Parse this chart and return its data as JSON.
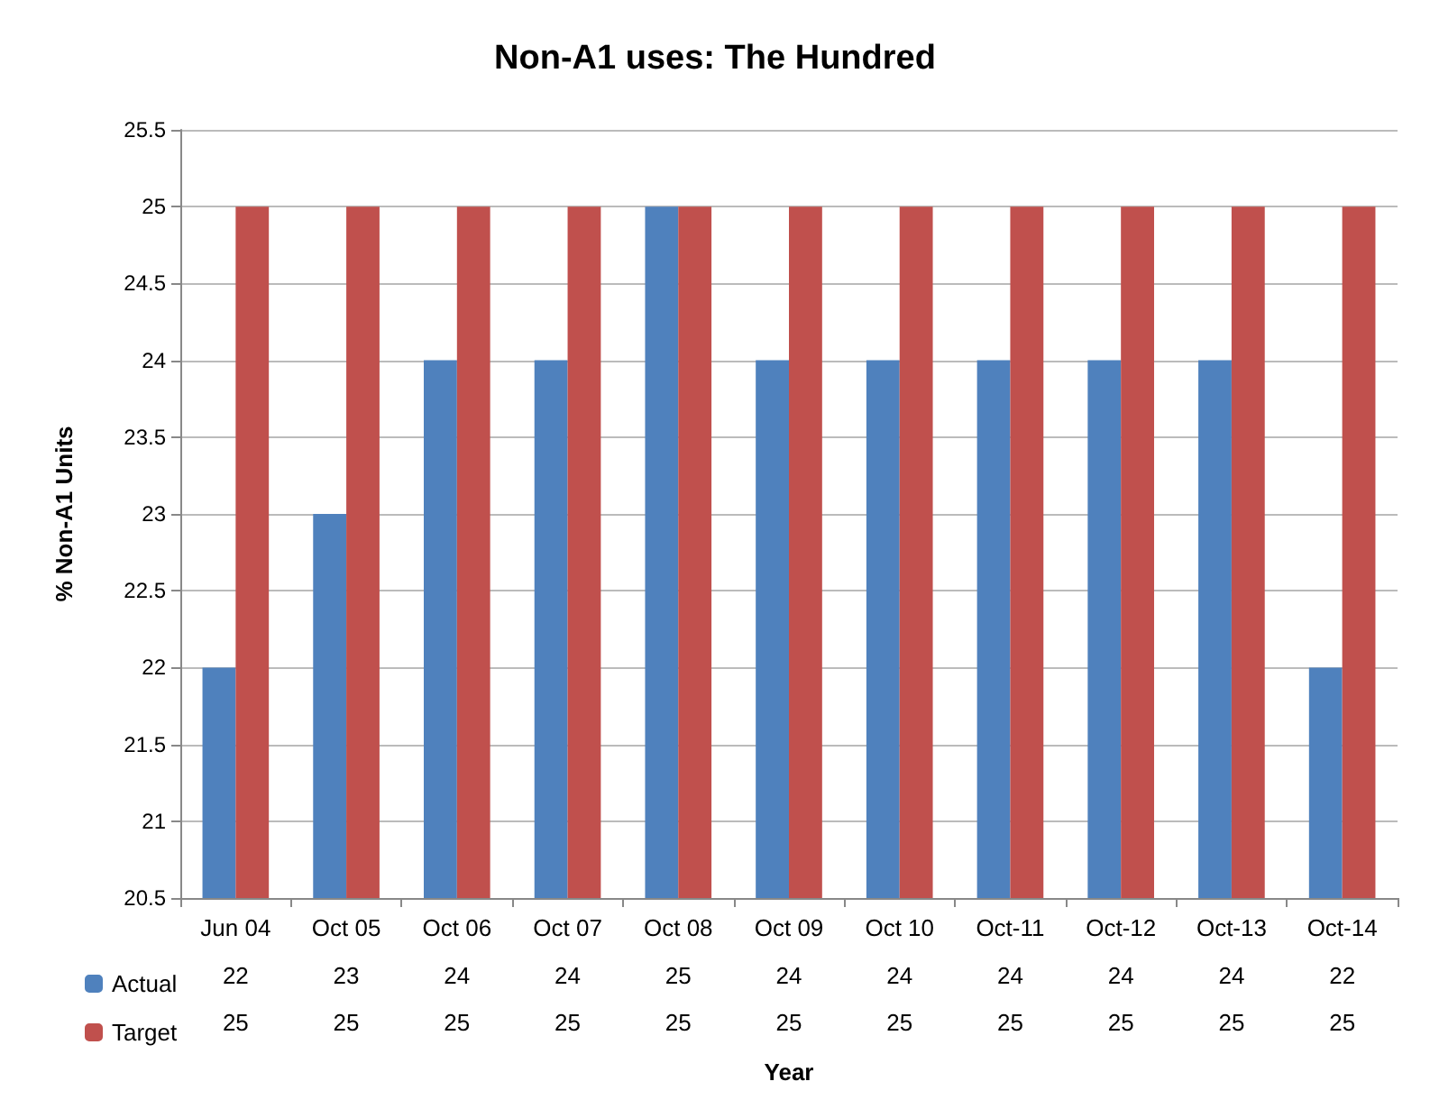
{
  "chart_data": {
    "type": "bar",
    "title": "Non-A1 uses: The Hundred",
    "xlabel": "Year",
    "ylabel": "% Non-A1 Units",
    "categories": [
      "Jun 04",
      "Oct 05",
      "Oct 06",
      "Oct 07",
      "Oct 08",
      "Oct 09",
      "Oct 10",
      "Oct-11",
      "Oct-12",
      "Oct-13",
      "Oct-14"
    ],
    "series": [
      {
        "name": "Actual",
        "color": "#4f81bd",
        "values": [
          22,
          23,
          24,
          24,
          25,
          24,
          24,
          24,
          24,
          24,
          22
        ]
      },
      {
        "name": "Target",
        "color": "#c0504d",
        "values": [
          25,
          25,
          25,
          25,
          25,
          25,
          25,
          25,
          25,
          25,
          25
        ]
      }
    ],
    "ylim": [
      20.5,
      25.5
    ],
    "yticks": [
      20.5,
      21,
      21.5,
      22,
      22.5,
      23,
      23.5,
      24,
      24.5,
      25,
      25.5
    ],
    "grid": "y",
    "legend": "bottom",
    "data_labels": true
  }
}
